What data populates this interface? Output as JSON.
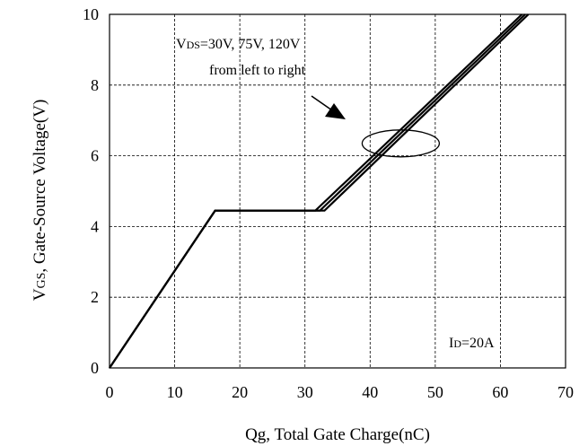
{
  "chart_data": {
    "type": "line",
    "xlabel": "Qg, Total Gate Charge(nC)",
    "ylabel": "VGS, Gate-Source Voltage(V)",
    "ylabel_parts": {
      "sym": "V",
      "sub": "GS",
      "rest": ", Gate-Source Voltage(V)"
    },
    "xlim": [
      0,
      70
    ],
    "ylim": [
      0,
      10
    ],
    "x_ticks": [
      "0",
      "10",
      "20",
      "30",
      "40",
      "50",
      "60",
      "70"
    ],
    "y_ticks": [
      "0",
      "2",
      "4",
      "6",
      "8",
      "10"
    ],
    "grid": true,
    "series": [
      {
        "name": "VDS=30V",
        "x": [
          0,
          16.2,
          31.6,
          63.3
        ],
        "y": [
          0,
          4.45,
          4.45,
          10
        ]
      },
      {
        "name": "VDS=75V",
        "x": [
          0,
          16.2,
          32.3,
          63.8
        ],
        "y": [
          0,
          4.45,
          4.45,
          10
        ]
      },
      {
        "name": "VDS=120V",
        "x": [
          0,
          16.2,
          33.0,
          64.3
        ],
        "y": [
          0,
          4.45,
          4.45,
          10
        ]
      }
    ],
    "annotations": {
      "vds": {
        "sym": "V",
        "sub": "DS",
        "rest": "=30V, 75V, 120V"
      },
      "order_note": "from left to right",
      "id": {
        "sym": "I",
        "sub": "D",
        "rest": "=20A"
      }
    }
  }
}
